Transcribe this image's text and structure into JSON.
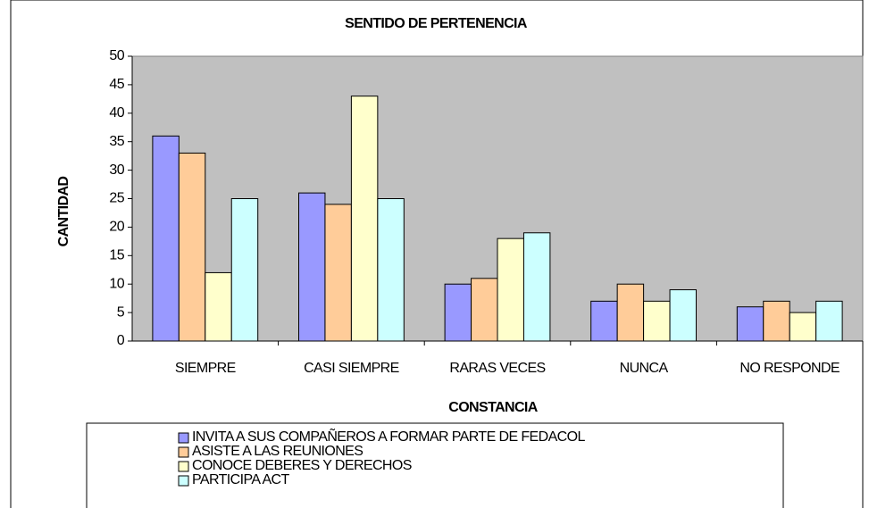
{
  "chart_data": {
    "type": "bar",
    "title": "SENTIDO DE PERTENENCIA",
    "x_label": "CONSTANCIA",
    "y_label": "CANTIDAD",
    "categories": [
      "SIEMPRE",
      "CASI SIEMPRE",
      "RARAS VECES",
      "NUNCA",
      "NO RESPONDE"
    ],
    "series": [
      {
        "name": "INVITA A SUS COMPAÑEROS A FORMAR PARTE DE FEDACOL",
        "color": "#9999ff",
        "values": [
          36,
          26,
          10,
          7,
          6
        ]
      },
      {
        "name": "ASISTE A LAS REUNIONES",
        "color": "#ffcc99",
        "values": [
          33,
          24,
          11,
          10,
          7
        ]
      },
      {
        "name": "CONOCE DEBERES Y DERECHOS",
        "color": "#ffffcc",
        "values": [
          12,
          43,
          18,
          7,
          5
        ]
      },
      {
        "name": "PARTICIPA ACT",
        "color": "#ccffff",
        "values": [
          25,
          25,
          19,
          9,
          7
        ]
      }
    ],
    "ylim": [
      0,
      50
    ],
    "yticks": [
      0,
      5,
      10,
      15,
      20,
      25,
      30,
      35,
      40,
      45,
      50
    ],
    "plot_background": "#c0c0c0",
    "legend": "bottom"
  }
}
